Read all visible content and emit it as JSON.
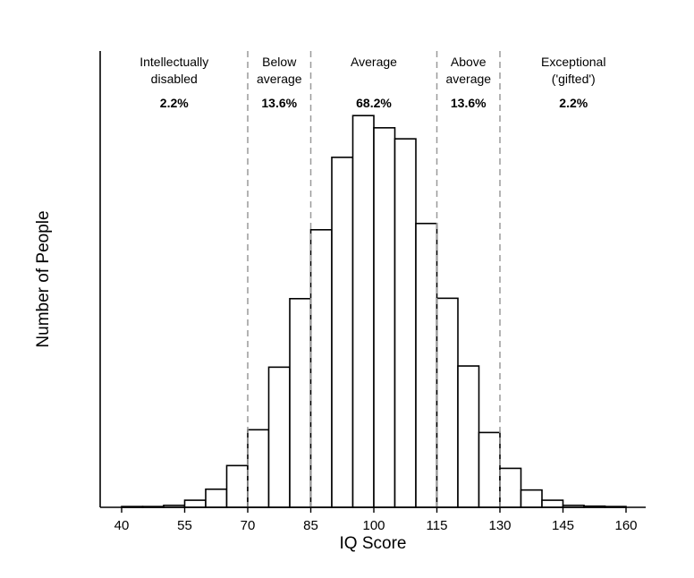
{
  "chart_data": {
    "type": "bar",
    "subtype": "histogram",
    "title": "",
    "xlabel": "IQ Score",
    "ylabel": "Number of People",
    "xlim": [
      35,
      165
    ],
    "ylim": [
      0,
      100
    ],
    "x_ticks": [
      40,
      55,
      70,
      85,
      100,
      115,
      130,
      145,
      160
    ],
    "bin_width": 5,
    "bins": [
      40,
      45,
      50,
      55,
      60,
      65,
      70,
      75,
      80,
      85,
      90,
      95,
      100,
      105,
      110,
      115,
      120,
      125,
      130,
      135,
      140,
      145,
      150,
      155
    ],
    "values": [
      0.2,
      0.2,
      0.5,
      1.8,
      4.6,
      10.6,
      19.7,
      35.6,
      53,
      70.5,
      88.9,
      99.5,
      96.4,
      93.6,
      72.1,
      53.1,
      35.9,
      19,
      9.9,
      4.4,
      1.8,
      0.5,
      0.3,
      0.2
    ],
    "dividers": [
      70,
      85,
      115,
      130
    ],
    "categories": [
      {
        "lines": [
          "Intellectually",
          "disabled"
        ],
        "percent": "2.2%",
        "x": 52.5
      },
      {
        "lines": [
          "Below",
          "average"
        ],
        "percent": "13.6%",
        "x": 77.5
      },
      {
        "lines": [
          "Average"
        ],
        "percent": "68.2%",
        "x": 100
      },
      {
        "lines": [
          "Above",
          "average"
        ],
        "percent": "13.6%",
        "x": 122.5
      },
      {
        "lines": [
          "Exceptional",
          "('gifted')"
        ],
        "percent": "2.2%",
        "x": 147.5
      }
    ]
  }
}
